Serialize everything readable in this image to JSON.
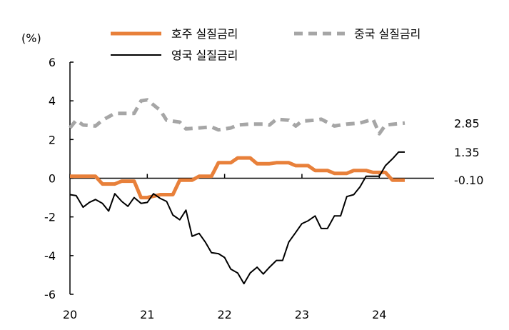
{
  "chart_data": {
    "type": "line",
    "ylabel": "(%)",
    "ylim": [
      -6,
      6
    ],
    "yticks": [
      "6",
      "4",
      "2",
      "0",
      "-2",
      "-4",
      "-6"
    ],
    "ytick_values": [
      6,
      4,
      2,
      0,
      -2,
      -4,
      -6
    ],
    "xlim": [
      2020,
      2024.45
    ],
    "xticks": [
      "20",
      "21",
      "22",
      "23",
      "24"
    ],
    "xtick_values": [
      2020,
      2021,
      2022,
      2023,
      2024
    ],
    "legend": [
      "호주 실질금리",
      "중국 실질금리",
      "영국 실질금리"
    ],
    "series": [
      {
        "name": "호주 실질금리",
        "color": "#E8803A",
        "style": "solid-thick",
        "end_label": "-0.10",
        "points": [
          [
            2020.0,
            0.1
          ],
          [
            2020.33,
            0.1
          ],
          [
            2020.42,
            -0.3
          ],
          [
            2020.58,
            -0.3
          ],
          [
            2020.67,
            -0.15
          ],
          [
            2020.83,
            -0.15
          ],
          [
            2020.92,
            -1.0
          ],
          [
            2021.0,
            -1.0
          ],
          [
            2021.17,
            -0.85
          ],
          [
            2021.33,
            -0.85
          ],
          [
            2021.42,
            -0.1
          ],
          [
            2021.58,
            -0.1
          ],
          [
            2021.67,
            0.1
          ],
          [
            2021.83,
            0.1
          ],
          [
            2021.92,
            0.8
          ],
          [
            2022.08,
            0.8
          ],
          [
            2022.17,
            1.05
          ],
          [
            2022.33,
            1.05
          ],
          [
            2022.42,
            0.75
          ],
          [
            2022.58,
            0.75
          ],
          [
            2022.67,
            0.8
          ],
          [
            2022.83,
            0.8
          ],
          [
            2022.92,
            0.65
          ],
          [
            2023.08,
            0.65
          ],
          [
            2023.17,
            0.4
          ],
          [
            2023.33,
            0.4
          ],
          [
            2023.42,
            0.25
          ],
          [
            2023.58,
            0.25
          ],
          [
            2023.67,
            0.4
          ],
          [
            2023.83,
            0.4
          ],
          [
            2023.92,
            0.3
          ],
          [
            2024.08,
            0.3
          ],
          [
            2024.17,
            -0.1
          ],
          [
            2024.33,
            -0.1
          ]
        ]
      },
      {
        "name": "중국 실질금리",
        "color": "#A6A6A6",
        "style": "dashed-thick",
        "end_label": "2.85",
        "points": [
          [
            2020.0,
            2.6
          ],
          [
            2020.08,
            3.0
          ],
          [
            2020.17,
            2.75
          ],
          [
            2020.33,
            2.7
          ],
          [
            2020.42,
            3.0
          ],
          [
            2020.58,
            3.35
          ],
          [
            2020.83,
            3.35
          ],
          [
            2020.92,
            4.0
          ],
          [
            2021.0,
            4.05
          ],
          [
            2021.17,
            3.5
          ],
          [
            2021.25,
            3.0
          ],
          [
            2021.42,
            2.9
          ],
          [
            2021.5,
            2.55
          ],
          [
            2021.67,
            2.6
          ],
          [
            2021.83,
            2.65
          ],
          [
            2021.92,
            2.5
          ],
          [
            2022.08,
            2.6
          ],
          [
            2022.17,
            2.75
          ],
          [
            2022.33,
            2.8
          ],
          [
            2022.5,
            2.8
          ],
          [
            2022.58,
            2.75
          ],
          [
            2022.67,
            3.05
          ],
          [
            2022.83,
            3.0
          ],
          [
            2022.92,
            2.7
          ],
          [
            2023.0,
            2.95
          ],
          [
            2023.17,
            3.0
          ],
          [
            2023.25,
            3.05
          ],
          [
            2023.42,
            2.7
          ],
          [
            2023.58,
            2.8
          ],
          [
            2023.75,
            2.85
          ],
          [
            2023.92,
            3.05
          ],
          [
            2024.0,
            2.3
          ],
          [
            2024.08,
            2.75
          ],
          [
            2024.33,
            2.85
          ]
        ]
      },
      {
        "name": "영국 실질금리",
        "color": "#000000",
        "style": "solid-thin",
        "end_label": "1.35",
        "points": [
          [
            2020.0,
            -0.85
          ],
          [
            2020.08,
            -0.9
          ],
          [
            2020.17,
            -1.5
          ],
          [
            2020.25,
            -1.25
          ],
          [
            2020.33,
            -1.1
          ],
          [
            2020.42,
            -1.3
          ],
          [
            2020.5,
            -1.7
          ],
          [
            2020.58,
            -0.8
          ],
          [
            2020.67,
            -1.2
          ],
          [
            2020.75,
            -1.45
          ],
          [
            2020.83,
            -1.0
          ],
          [
            2020.92,
            -1.3
          ],
          [
            2021.0,
            -1.25
          ],
          [
            2021.08,
            -0.8
          ],
          [
            2021.17,
            -1.05
          ],
          [
            2021.25,
            -1.2
          ],
          [
            2021.33,
            -1.9
          ],
          [
            2021.42,
            -2.15
          ],
          [
            2021.5,
            -1.65
          ],
          [
            2021.58,
            -3.0
          ],
          [
            2021.67,
            -2.85
          ],
          [
            2021.75,
            -3.3
          ],
          [
            2021.83,
            -3.85
          ],
          [
            2021.92,
            -3.9
          ],
          [
            2022.0,
            -4.1
          ],
          [
            2022.08,
            -4.7
          ],
          [
            2022.17,
            -4.9
          ],
          [
            2022.25,
            -5.45
          ],
          [
            2022.33,
            -4.9
          ],
          [
            2022.42,
            -4.6
          ],
          [
            2022.5,
            -4.95
          ],
          [
            2022.58,
            -4.6
          ],
          [
            2022.67,
            -4.25
          ],
          [
            2022.75,
            -4.25
          ],
          [
            2022.83,
            -3.3
          ],
          [
            2022.92,
            -2.8
          ],
          [
            2023.0,
            -2.35
          ],
          [
            2023.08,
            -2.2
          ],
          [
            2023.17,
            -1.95
          ],
          [
            2023.25,
            -2.6
          ],
          [
            2023.33,
            -2.6
          ],
          [
            2023.42,
            -1.95
          ],
          [
            2023.5,
            -1.95
          ],
          [
            2023.58,
            -0.95
          ],
          [
            2023.67,
            -0.85
          ],
          [
            2023.75,
            -0.45
          ],
          [
            2023.83,
            0.1
          ],
          [
            2024.0,
            0.1
          ],
          [
            2024.08,
            0.65
          ],
          [
            2024.17,
            1.0
          ],
          [
            2024.25,
            1.35
          ],
          [
            2024.33,
            1.35
          ]
        ]
      }
    ]
  }
}
